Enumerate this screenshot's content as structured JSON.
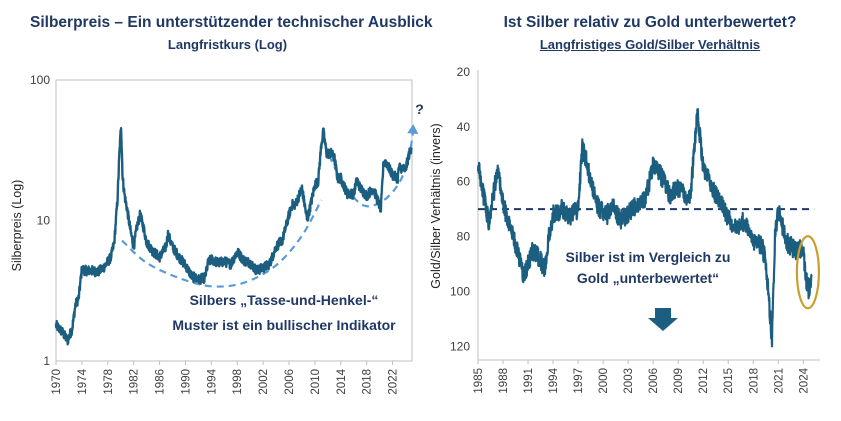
{
  "chart_data": [
    {
      "type": "line",
      "title": "Silberpreis – Ein unterstützender technischer Ausblick",
      "subtitle": "Langfristkurs (Log)",
      "ylabel": "Silberpreis (Log)",
      "xlabel": "",
      "yscale": "log",
      "ylim": [
        1,
        100
      ],
      "xlim": [
        1970,
        2025
      ],
      "y_tick_labels": [
        "1",
        "10",
        "100"
      ],
      "y_tick_values": [
        1,
        10,
        100
      ],
      "x_tick_labels": [
        "1970",
        "1974",
        "1978",
        "1982",
        "1986",
        "1990",
        "1994",
        "1998",
        "2002",
        "2006",
        "2010",
        "2014",
        "2018",
        "2022"
      ],
      "x_tick_values": [
        1970,
        1974,
        1978,
        1982,
        1986,
        1990,
        1994,
        1998,
        2002,
        2006,
        2010,
        2014,
        2018,
        2022
      ],
      "grid": false,
      "series_color": "#1b5e7f",
      "pattern_color": "#5b9bd5",
      "series": [
        {
          "x": [
            1970.0,
            1971.0,
            1971.8,
            1972.5,
            1973.0,
            1973.5,
            1974.0,
            1974.5,
            1975.5,
            1976.5,
            1977.5,
            1978.5,
            1979.0,
            1979.5,
            1979.8,
            1980.05,
            1980.3,
            1980.6,
            1981.0,
            1981.5,
            1982.0,
            1982.5,
            1983.0,
            1983.5,
            1984.0,
            1985.0,
            1986.0,
            1987.0,
            1987.3,
            1988.0,
            1989.0,
            1990.0,
            1991.0,
            1992.0,
            1993.0,
            1993.5,
            1994.0,
            1995.0,
            1996.0,
            1997.0,
            1998.0,
            1999.0,
            2000.0,
            2001.0,
            2002.0,
            2003.0,
            2004.0,
            2005.0,
            2006.0,
            2006.5,
            2007.0,
            2008.0,
            2008.8,
            2009.5,
            2010.0,
            2010.5,
            2011.0,
            2011.3,
            2011.8,
            2012.5,
            2013.0,
            2013.5,
            2014.0,
            2015.0,
            2016.0,
            2016.5,
            2017.0,
            2018.0,
            2019.0,
            2020.2,
            2020.6,
            2021.0,
            2022.0,
            2022.8,
            2023.0,
            2024.0,
            2024.5,
            2024.9
          ],
          "values": [
            1.8,
            1.6,
            1.4,
            1.7,
            2.5,
            2.8,
            4.5,
            4.4,
            4.4,
            4.3,
            4.7,
            5.5,
            7.0,
            14.0,
            30.0,
            48.0,
            20.0,
            15.0,
            12.0,
            8.5,
            6.5,
            9.0,
            11.0,
            9.0,
            7.0,
            6.0,
            5.5,
            6.5,
            8.0,
            6.5,
            5.5,
            4.8,
            4.0,
            3.8,
            3.9,
            5.0,
            5.3,
            5.0,
            5.1,
            4.9,
            6.0,
            5.2,
            5.0,
            4.4,
            4.6,
            4.9,
            6.5,
            7.3,
            11.0,
            13.0,
            13.0,
            17.0,
            10.0,
            14.0,
            18.0,
            19.0,
            35.0,
            43.0,
            30.0,
            30.0,
            28.0,
            20.0,
            20.0,
            15.5,
            15.5,
            19.5,
            17.0,
            15.0,
            17.0,
            12.0,
            26.0,
            26.0,
            21.0,
            20.0,
            24.0,
            23.0,
            29.0,
            33.0
          ]
        }
      ],
      "pattern_points": {
        "x": [
          1980.2,
          1984.0,
          1989.0,
          1994.0,
          1999.0,
          2004.0,
          2008.0,
          2011.0
        ],
        "values": [
          7.2,
          5.0,
          3.9,
          3.4,
          3.6,
          4.8,
          7.8,
          14.0
        ]
      },
      "handle_points": {
        "x": [
          2012.2,
          2014.5,
          2017.5,
          2020.5,
          2023.0,
          2024.5,
          2025.2
        ],
        "values": [
          29.0,
          18.0,
          12.8,
          13.8,
          18.5,
          28.0,
          44.0
        ]
      },
      "annotations": [
        "?",
        "Silbers „Tasse-und-Henkel-“",
        "Muster ist ein bullischer Indikator"
      ]
    },
    {
      "type": "line",
      "title": "Ist Silber relativ zu Gold unterbewertet?",
      "subtitle": "Langfristiges Gold/Silber Verhältnis",
      "ylabel": "Gold/Silber Verhältnis (invers)",
      "xlabel": "",
      "yscale": "inverted",
      "ylim": [
        20,
        125
      ],
      "xlim": [
        1985,
        2026
      ],
      "y_tick_labels": [
        "20",
        "40",
        "60",
        "80",
        "100",
        "120"
      ],
      "y_tick_values": [
        20,
        40,
        60,
        80,
        100,
        120
      ],
      "x_tick_labels": [
        "1985",
        "1988",
        "1991",
        "1994",
        "1997",
        "2000",
        "2003",
        "2006",
        "2009",
        "2012",
        "2015",
        "2018",
        "2021",
        "2024"
      ],
      "x_tick_values": [
        1985,
        1988,
        1991,
        1994,
        1997,
        2000,
        2003,
        2006,
        2009,
        2012,
        2015,
        2018,
        2021,
        2024
      ],
      "reference_line": 70,
      "grid": false,
      "series_color": "#1b5e7f",
      "marker_color": "#c8a02b",
      "series": [
        {
          "x": [
            1985.0,
            1985.6,
            1986.3,
            1987.0,
            1987.4,
            1988.0,
            1989.0,
            1990.0,
            1990.5,
            1991.0,
            1991.5,
            1992.0,
            1993.0,
            1993.5,
            1994.0,
            1995.0,
            1996.0,
            1997.0,
            1997.5,
            1998.0,
            1998.5,
            1999.5,
            2000.5,
            2001.0,
            2002.0,
            2003.0,
            2004.0,
            2005.0,
            2006.0,
            2006.5,
            2007.0,
            2008.0,
            2009.0,
            2010.0,
            2010.5,
            2011.3,
            2012.0,
            2013.0,
            2014.0,
            2015.0,
            2016.0,
            2017.0,
            2018.0,
            2019.0,
            2019.5,
            2020.25,
            2020.6,
            2021.0,
            2022.0,
            2023.0,
            2024.0,
            2024.3,
            2024.7,
            2025.0
          ],
          "values": [
            54,
            64,
            75,
            62,
            55,
            68,
            78,
            88,
            95,
            90,
            85,
            86,
            92,
            80,
            72,
            70,
            73,
            70,
            48,
            52,
            60,
            70,
            72,
            68,
            74,
            72,
            68,
            67,
            54,
            56,
            58,
            65,
            62,
            66,
            64,
            35,
            55,
            62,
            67,
            73,
            77,
            74,
            82,
            83,
            89,
            118,
            80,
            70,
            82,
            85,
            84,
            95,
            100,
            94
          ]
        }
      ],
      "annotations": [
        "Silber ist im Vergleich zu",
        "Gold „unterbewertet“"
      ]
    }
  ]
}
